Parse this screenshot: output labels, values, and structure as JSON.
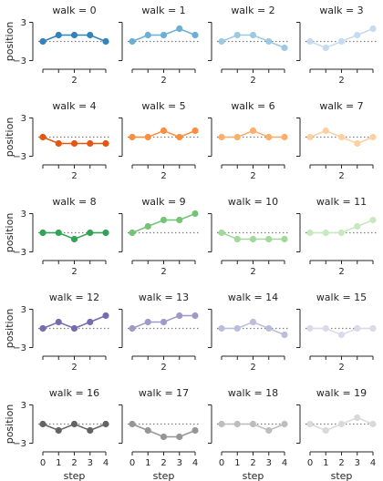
{
  "chart_data": {
    "type": "line",
    "layout": "facet-grid",
    "ncols": 4,
    "xlabel": "step",
    "ylabel": "position",
    "ylim": [
      -3.5,
      3.5
    ],
    "yticks": [
      -3,
      3
    ],
    "xticks": [
      0,
      1,
      2,
      3,
      4
    ],
    "x": [
      0,
      1,
      2,
      3,
      4
    ],
    "reference_line": {
      "y": 0,
      "style": "dotted",
      "color": "#808080"
    },
    "panels": [
      {
        "title": "walk = 0",
        "color": "#3182bd",
        "values": [
          0,
          1,
          1,
          1,
          0
        ]
      },
      {
        "title": "walk = 1",
        "color": "#6baed6",
        "values": [
          0,
          1,
          1,
          2,
          1
        ]
      },
      {
        "title": "walk = 2",
        "color": "#9ecae1",
        "values": [
          0,
          1,
          1,
          0,
          -1
        ]
      },
      {
        "title": "walk = 3",
        "color": "#c6dbef",
        "values": [
          0,
          -1,
          0,
          1,
          2
        ]
      },
      {
        "title": "walk = 4",
        "color": "#e6550d",
        "values": [
          0,
          -1,
          -1,
          -1,
          -1
        ]
      },
      {
        "title": "walk = 5",
        "color": "#fd8d3c",
        "values": [
          0,
          0,
          1,
          0,
          1
        ]
      },
      {
        "title": "walk = 6",
        "color": "#fdae6b",
        "values": [
          0,
          0,
          1,
          0,
          0
        ]
      },
      {
        "title": "walk = 7",
        "color": "#fdd0a2",
        "values": [
          0,
          1,
          0,
          -1,
          0
        ]
      },
      {
        "title": "walk = 8",
        "color": "#31a354",
        "values": [
          0,
          0,
          -1,
          0,
          0
        ]
      },
      {
        "title": "walk = 9",
        "color": "#74c476",
        "values": [
          0,
          1,
          2,
          2,
          3
        ]
      },
      {
        "title": "walk = 10",
        "color": "#a1d99b",
        "values": [
          0,
          -1,
          -1,
          -1,
          -1
        ]
      },
      {
        "title": "walk = 11",
        "color": "#c7e9c0",
        "values": [
          0,
          0,
          0,
          1,
          2
        ]
      },
      {
        "title": "walk = 12",
        "color": "#756bb1",
        "values": [
          0,
          1,
          0,
          1,
          2
        ]
      },
      {
        "title": "walk = 13",
        "color": "#9e9ac8",
        "values": [
          0,
          1,
          1,
          2,
          2
        ]
      },
      {
        "title": "walk = 14",
        "color": "#bcbddc",
        "values": [
          0,
          0,
          1,
          0,
          -1
        ]
      },
      {
        "title": "walk = 15",
        "color": "#dadaeb",
        "values": [
          0,
          0,
          -1,
          0,
          0
        ]
      },
      {
        "title": "walk = 16",
        "color": "#636363",
        "values": [
          0,
          -1,
          0,
          -1,
          0
        ]
      },
      {
        "title": "walk = 17",
        "color": "#969696",
        "values": [
          0,
          -1,
          -2,
          -2,
          -1
        ]
      },
      {
        "title": "walk = 18",
        "color": "#bdbdbd",
        "values": [
          0,
          0,
          0,
          -1,
          0
        ]
      },
      {
        "title": "walk = 19",
        "color": "#d9d9d9",
        "values": [
          0,
          -1,
          0,
          1,
          0
        ]
      }
    ]
  }
}
